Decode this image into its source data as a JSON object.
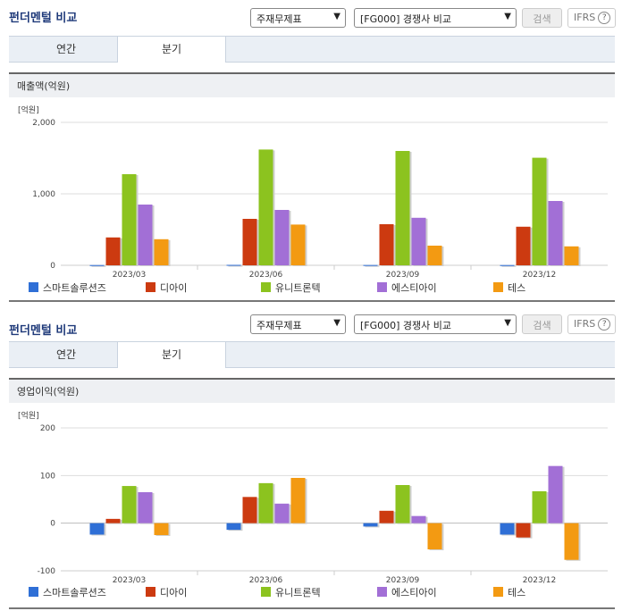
{
  "panels": [
    {
      "title": "펀더멘털 비교",
      "select_main": "주재무제표",
      "select_compare": "[FG000] 경쟁사 비교",
      "search_label": "검색",
      "ifrs_label": "IFRS",
      "ifrs_help": "?",
      "tabs": [
        "연간",
        "분기"
      ],
      "active_tab": 1,
      "section_label": "매출액(억원)"
    },
    {
      "title": "펀더멘털 비교",
      "select_main": "주재무제표",
      "select_compare": "[FG000] 경쟁사 비교",
      "search_label": "검색",
      "ifrs_label": "IFRS",
      "ifrs_help": "?",
      "tabs": [
        "연간",
        "분기"
      ],
      "active_tab": 1,
      "section_label": "영업이익(억원)"
    }
  ],
  "chart_data": [
    {
      "type": "bar",
      "unit_label": "[억원]",
      "categories": [
        "2023/03",
        "2023/06",
        "2023/09",
        "2023/12"
      ],
      "ylim": [
        0,
        2000
      ],
      "yticks": [
        0,
        1000,
        2000
      ],
      "ytick_labels": [
        "0",
        "1,000",
        "2,000"
      ],
      "grid": true,
      "legend_position": "bottom",
      "series": [
        {
          "name": "스마트솔루션즈",
          "color": "#2f6fd6",
          "values": [
            3,
            6,
            4,
            3
          ]
        },
        {
          "name": "디아이",
          "color": "#cc3a10",
          "values": [
            390,
            650,
            575,
            540
          ]
        },
        {
          "name": "유니트론텍",
          "color": "#8cc31f",
          "values": [
            1275,
            1620,
            1600,
            1505
          ]
        },
        {
          "name": "에스티아이",
          "color": "#a26fd6",
          "values": [
            850,
            775,
            665,
            900
          ]
        },
        {
          "name": "테스",
          "color": "#f39a12",
          "values": [
            365,
            570,
            275,
            265
          ]
        }
      ]
    },
    {
      "type": "bar",
      "unit_label": "[억원]",
      "categories": [
        "2023/03",
        "2023/06",
        "2023/09",
        "2023/12"
      ],
      "ylim": [
        -100,
        200
      ],
      "yticks": [
        -100,
        0,
        100,
        200
      ],
      "ytick_labels": [
        "-100",
        "0",
        "100",
        "200"
      ],
      "grid": true,
      "legend_position": "bottom",
      "series": [
        {
          "name": "스마트솔루션즈",
          "color": "#2f6fd6",
          "values": [
            -24,
            -14,
            -7,
            -24
          ]
        },
        {
          "name": "디아이",
          "color": "#cc3a10",
          "values": [
            9,
            55,
            26,
            -30
          ]
        },
        {
          "name": "유니트론텍",
          "color": "#8cc31f",
          "values": [
            78,
            84,
            80,
            67
          ]
        },
        {
          "name": "에스티아이",
          "color": "#a26fd6",
          "values": [
            65,
            41,
            15,
            120
          ]
        },
        {
          "name": "테스",
          "color": "#f39a12",
          "values": [
            -25,
            95,
            -55,
            -77
          ]
        }
      ]
    }
  ]
}
